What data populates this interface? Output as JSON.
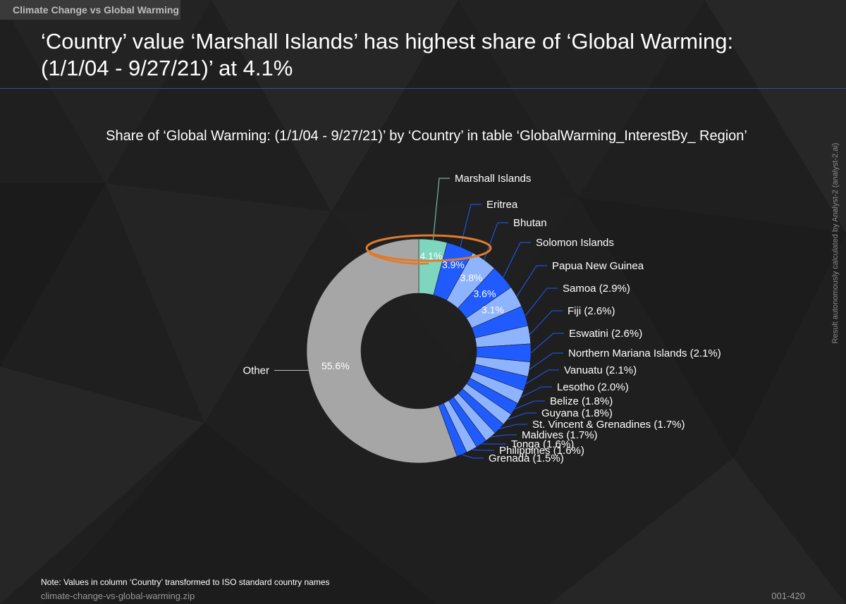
{
  "tag": "Climate Change vs Global Warming",
  "headline": "‘Country’ value ‘Marshall Islands’ has highest share of ‘Global Warming: (1/1/04 - 9/27/21)’ at 4.1%",
  "side_note": "Result autonomously calculated by Analyst-2 (analyst-2.ai)",
  "footer": {
    "note": "Note: Values in column ‘Country’ transformed to ISO standard country names",
    "file": "climate-change-vs-global-warming.zip",
    "id": "001-420"
  },
  "colors": {
    "highlight": "#7fd6bf",
    "blue_dark": "#1f5bff",
    "blue_light": "#8fb4ff",
    "other": "#a6a6a6",
    "annotation": "#e07a2a"
  },
  "chart_data": {
    "type": "donut",
    "title": "Share of ‘Global Warming: (1/1/04 - 9/27/21)’ by ‘Country’ in table ‘GlobalWarming_InterestBy_ Region’",
    "unit": "%",
    "slices": [
      {
        "label": "Marshall Islands",
        "value": 4.1,
        "value_label": "4.1%",
        "outer_label": "Marshall Islands"
      },
      {
        "label": "Eritrea",
        "value": 3.9,
        "value_label": "3.9%",
        "outer_label": "Eritrea"
      },
      {
        "label": "Bhutan",
        "value": 3.8,
        "value_label": "3.8%",
        "outer_label": "Bhutan"
      },
      {
        "label": "Solomon Islands",
        "value": 3.6,
        "value_label": "3.6%",
        "outer_label": "Solomon Islands"
      },
      {
        "label": "Papua New Guinea",
        "value": 3.1,
        "value_label": "3.1%",
        "outer_label": "Papua New Guinea"
      },
      {
        "label": "Samoa",
        "value": 2.9,
        "value_label": "",
        "outer_label": "Samoa (2.9%)"
      },
      {
        "label": "Fiji",
        "value": 2.6,
        "value_label": "",
        "outer_label": "Fiji (2.6%)"
      },
      {
        "label": "Eswatini",
        "value": 2.6,
        "value_label": "",
        "outer_label": "Eswatini (2.6%)"
      },
      {
        "label": "Northern Mariana Islands",
        "value": 2.1,
        "value_label": "",
        "outer_label": "Northern Mariana Islands (2.1%)"
      },
      {
        "label": "Vanuatu",
        "value": 2.1,
        "value_label": "",
        "outer_label": "Vanuatu (2.1%)"
      },
      {
        "label": "Lesotho",
        "value": 2.0,
        "value_label": "",
        "outer_label": "Lesotho (2.0%)"
      },
      {
        "label": "Belize",
        "value": 1.8,
        "value_label": "",
        "outer_label": "Belize (1.8%)"
      },
      {
        "label": "Guyana",
        "value": 1.8,
        "value_label": "",
        "outer_label": "Guyana (1.8%)"
      },
      {
        "label": "St. Vincent & Grenadines",
        "value": 1.7,
        "value_label": "",
        "outer_label": "St. Vincent & Grenadines (1.7%)"
      },
      {
        "label": "Maldives",
        "value": 1.7,
        "value_label": "",
        "outer_label": "Maldives (1.7%)"
      },
      {
        "label": "Tonga",
        "value": 1.6,
        "value_label": "",
        "outer_label": "Tonga (1.6%)"
      },
      {
        "label": "Philippines",
        "value": 1.6,
        "value_label": "",
        "outer_label": "Philippines (1.6%)"
      },
      {
        "label": "Grenada",
        "value": 1.5,
        "value_label": "",
        "outer_label": "Grenada (1.5%)"
      },
      {
        "label": "Other",
        "value": 55.6,
        "value_label": "55.6%",
        "outer_label": "Other"
      }
    ],
    "highlighted": "Marshall Islands"
  }
}
